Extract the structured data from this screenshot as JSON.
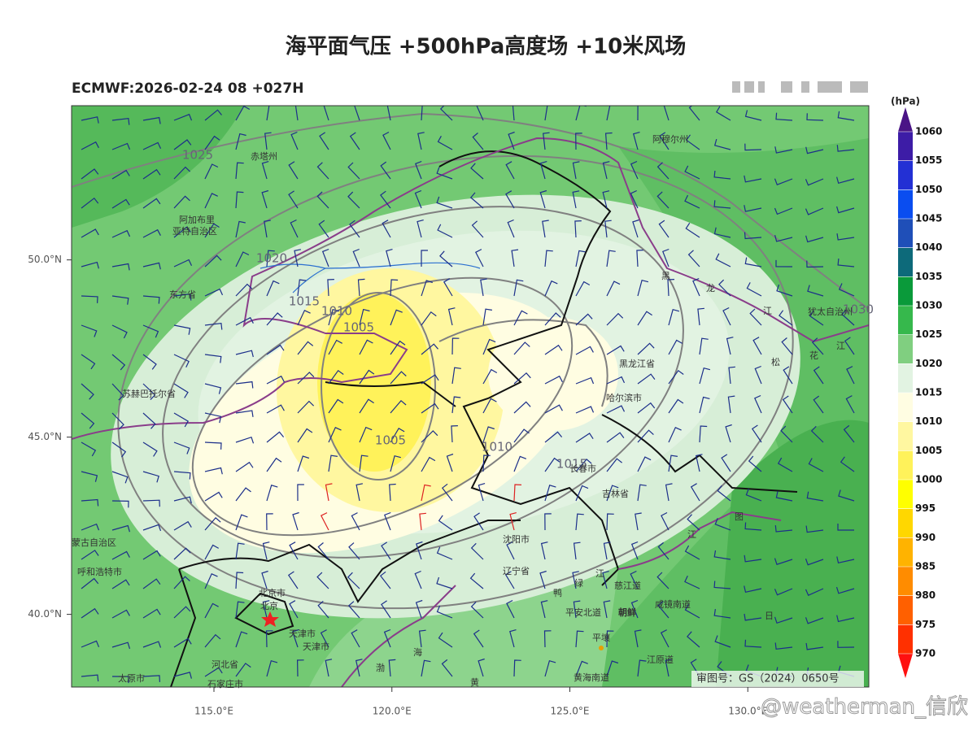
{
  "title": "海平面气压 +500hPa高度场 +10米风场",
  "subtitle": "ECMWF:2026-02-24 08 +027H",
  "axes": {
    "xlim": [
      111,
      133.4
    ],
    "ylim": [
      37.95,
      54.35
    ],
    "xticks": [
      {
        "value": 115,
        "label": "115.0°E"
      },
      {
        "value": 120,
        "label": "120.0°E"
      },
      {
        "value": 125,
        "label": "125.0°E"
      },
      {
        "value": 130,
        "label": "130.0°E"
      }
    ],
    "yticks": [
      {
        "value": 50,
        "label": "50.0°N"
      },
      {
        "value": 45,
        "label": "45.0°N"
      },
      {
        "value": 40,
        "label": "40.0°N"
      }
    ]
  },
  "colorbar": {
    "unit": "(hPa)",
    "levels": [
      1060,
      1055,
      1050,
      1045,
      1040,
      1035,
      1030,
      1025,
      1020,
      1015,
      1010,
      1005,
      1000,
      995,
      990,
      985,
      980,
      975,
      970
    ],
    "colors": [
      "#4a1486",
      "#3d1ca6",
      "#2330d4",
      "#0a4df0",
      "#1f4fb8",
      "#0d6a7a",
      "#0a9a3a",
      "#36b84c",
      "#80cf80",
      "#e2f3e2",
      "#fffde2",
      "#fff7a0",
      "#fff25a",
      "#ffff00",
      "#ffd700",
      "#ffb300",
      "#ff8c00",
      "#ff6000",
      "#ff3000",
      "#ff1010"
    ]
  },
  "contour_labels": [
    "1025",
    "1020",
    "1015",
    "1010",
    "1005",
    "1005",
    "1010",
    "1015",
    "1030"
  ],
  "places": [
    "赤塔州",
    "阿加布里",
    "亚特自治区",
    "东方省",
    "苏赫巴托尔省",
    "阿穆尔州",
    "黑龙江省",
    "哈尔滨市",
    "长春市",
    "吉林省",
    "沈阳市",
    "辽宁省",
    "慈江道",
    "平安北道",
    "朝鲜",
    "咸镜南道",
    "平壤",
    "黄海南道",
    "江原道",
    "呼和浩特市",
    "蒙古自治区",
    "北京市",
    "北京",
    "天津市",
    "天津市",
    "河北省",
    "太原市",
    "石家庄市",
    "犹太自治州",
    "渤",
    "海",
    "黄",
    "黑",
    "龙",
    "江",
    "松",
    "花",
    "江",
    "图",
    "江",
    "鸭",
    "绿",
    "江",
    "日"
  ],
  "map_notice": "审图号：GS（2024）0650号",
  "watermark": "@weatherman_信欣"
}
